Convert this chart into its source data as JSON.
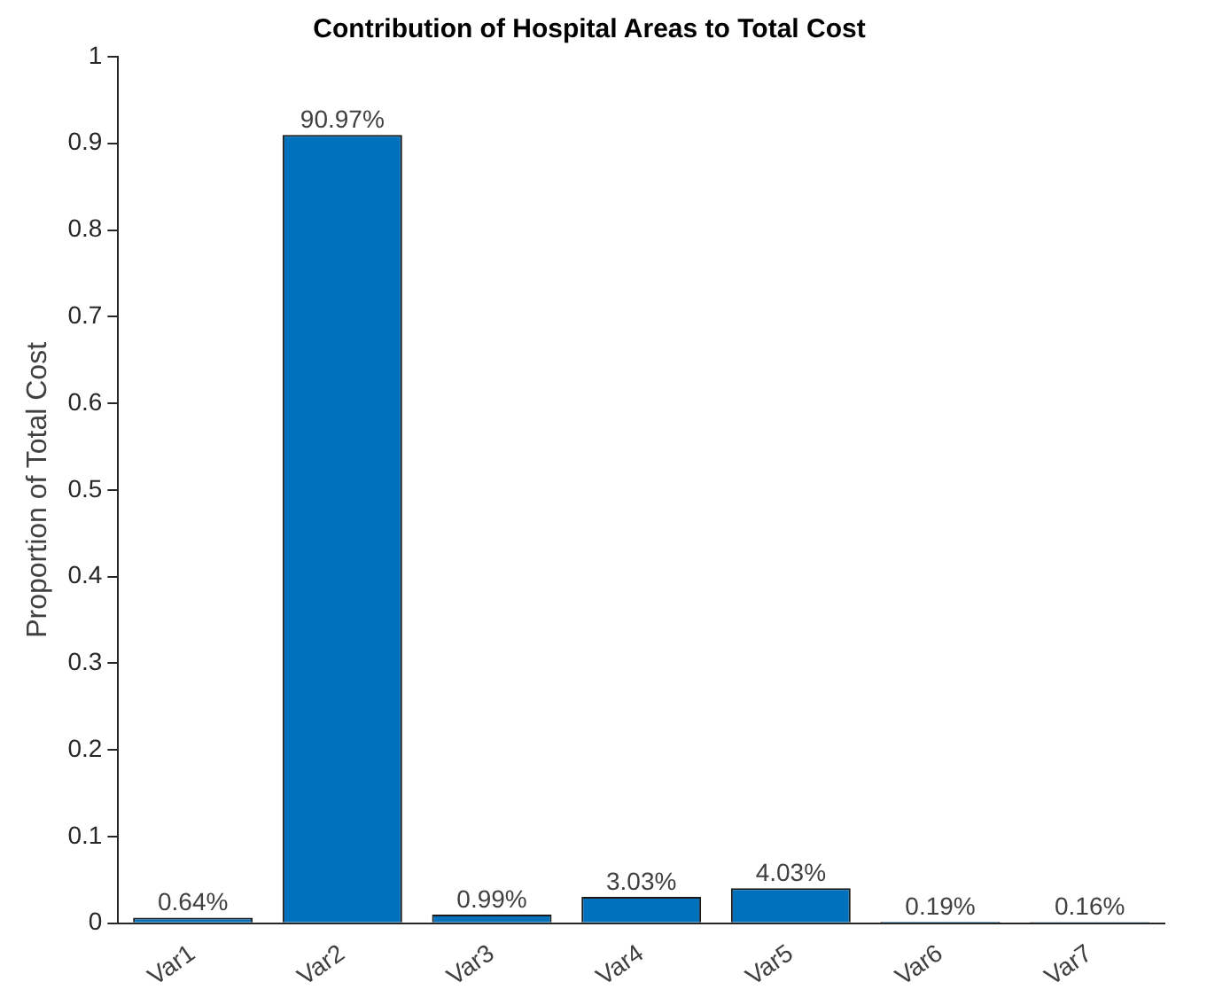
{
  "chart_data": {
    "type": "bar",
    "title": "Contribution of Hospital Areas to Total Cost",
    "ylabel": "Proportion of Total Cost",
    "categories": [
      "Var1",
      "Var2",
      "Var3",
      "Var4",
      "Var5",
      "Var6",
      "Var7"
    ],
    "values": [
      0.0064,
      0.9097,
      0.0099,
      0.0303,
      0.0403,
      0.0019,
      0.0016
    ],
    "value_labels": [
      "0.64%",
      "90.97%",
      "0.99%",
      "3.03%",
      "4.03%",
      "0.19%",
      "0.16%"
    ],
    "color": "#0072bd",
    "ylim": [
      0,
      1
    ],
    "yticks": [
      0,
      0.1,
      0.2,
      0.3,
      0.4,
      0.5,
      0.6,
      0.7,
      0.8,
      0.9,
      1
    ],
    "grid": false,
    "legend": false
  }
}
